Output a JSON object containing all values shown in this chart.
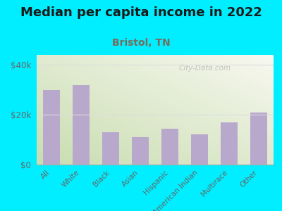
{
  "title": "Median per capita income in 2022",
  "subtitle": "Bristol, TN",
  "categories": [
    "All",
    "White",
    "Black",
    "Asian",
    "Hispanic",
    "American Indian",
    "Multirace",
    "Other"
  ],
  "values": [
    30000,
    32000,
    13000,
    11000,
    14500,
    12000,
    17000,
    21000
  ],
  "bar_color": "#b8a8cc",
  "background_outer": "#00eeff",
  "background_inner_topleft": "#c8ddb0",
  "background_inner_bottomright": "#f8f8f0",
  "yticks": [
    0,
    20000,
    40000
  ],
  "ytick_labels": [
    "$0",
    "$20k",
    "$40k"
  ],
  "ylim": [
    0,
    44000
  ],
  "title_fontsize": 13,
  "subtitle_fontsize": 10,
  "title_color": "#1a1a1a",
  "subtitle_color": "#7a6a5a",
  "tick_label_color": "#666666",
  "watermark_text": "City-Data.com",
  "watermark_color": "#bbbbbb",
  "grid_color": "#dddddd"
}
